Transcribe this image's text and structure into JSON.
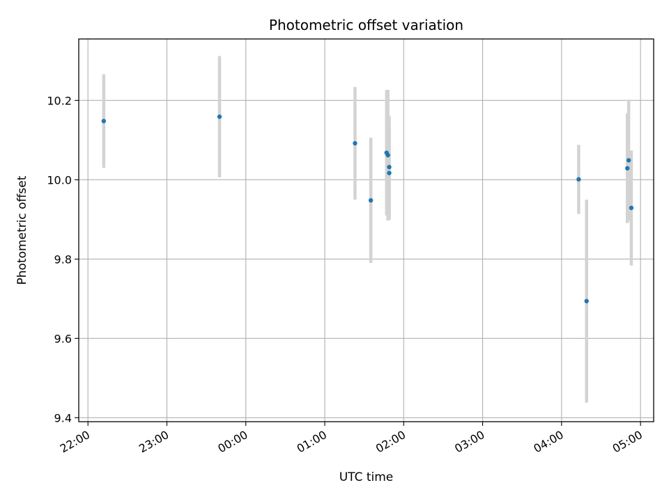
{
  "chart_data": {
    "type": "scatter",
    "title": "Photometric offset variation",
    "xlabel": "UTC time",
    "ylabel": "Photometric offset",
    "x_unit": "UTC time",
    "xlim": [
      "21:53",
      "05:10"
    ],
    "ylim": [
      9.39,
      10.355
    ],
    "xticks": [
      "22:00",
      "23:00",
      "00:00",
      "01:00",
      "02:00",
      "03:00",
      "04:00",
      "05:00"
    ],
    "yticks": [
      9.4,
      9.6,
      9.8,
      10.0,
      10.2
    ],
    "grid": true,
    "colors": {
      "points": "#1f77b4",
      "errorbars": "#d3d3d3",
      "grid": "#b0b0b0"
    },
    "points": [
      {
        "x": "22:12",
        "y": 10.148,
        "err": 0.118
      },
      {
        "x": "23:40",
        "y": 10.159,
        "err": 0.153
      },
      {
        "x": "01:23",
        "y": 10.092,
        "err": 0.142
      },
      {
        "x": "01:35",
        "y": 9.948,
        "err": 0.158
      },
      {
        "x": "01:47",
        "y": 10.068,
        "err": 0.158
      },
      {
        "x": "01:48",
        "y": 10.062,
        "err": 0.165
      },
      {
        "x": "01:49",
        "y": 10.032,
        "err": 0.128
      },
      {
        "x": "01:49",
        "y": 10.017,
        "err": 0.118
      },
      {
        "x": "04:13",
        "y": 10.001,
        "err": 0.087
      },
      {
        "x": "04:19",
        "y": 9.694,
        "err": 0.256
      },
      {
        "x": "04:50",
        "y": 10.029,
        "err": 0.138
      },
      {
        "x": "04:51",
        "y": 10.049,
        "err": 0.153
      },
      {
        "x": "04:53",
        "y": 9.929,
        "err": 0.145
      }
    ]
  }
}
